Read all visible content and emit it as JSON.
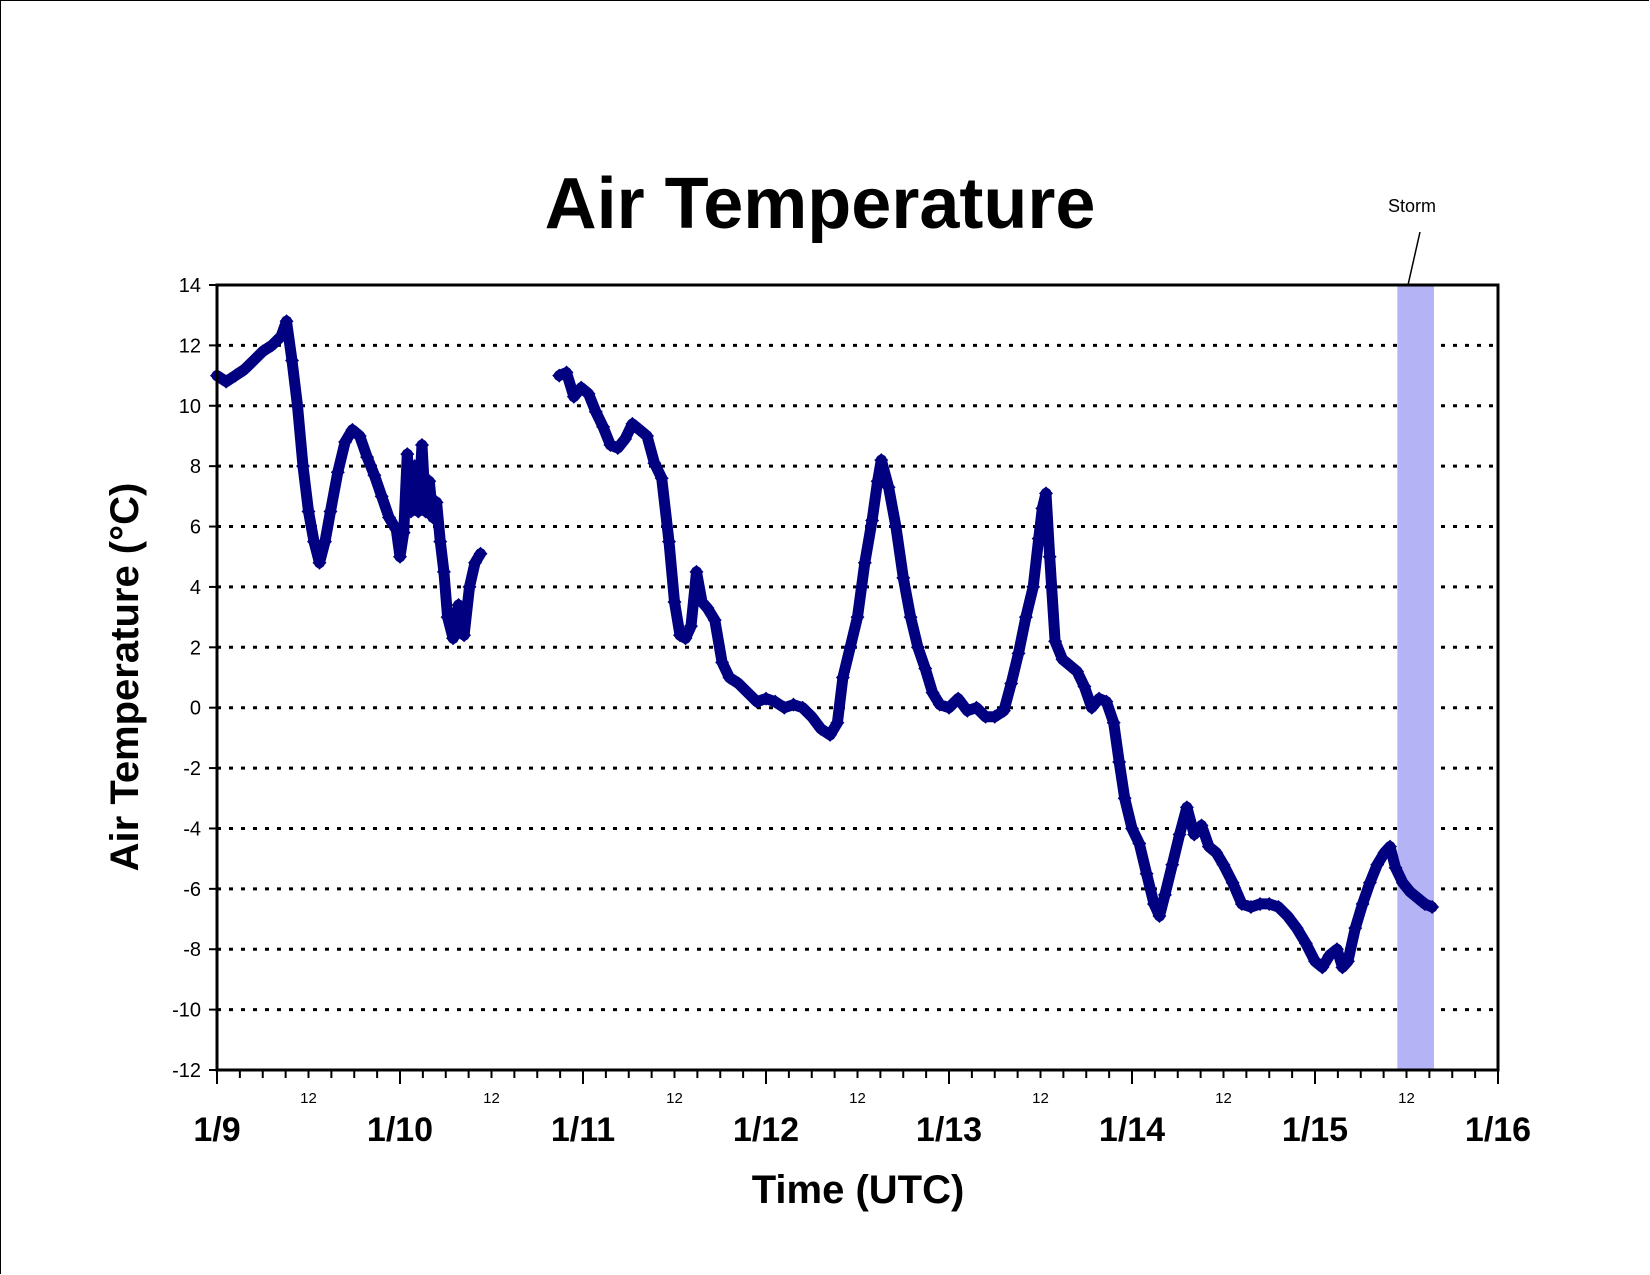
{
  "chart_data": {
    "type": "line",
    "title": "Air Temperature",
    "xlabel": "Time (UTC)",
    "ylabel": "Air Temperature (°C)",
    "ylim": [
      -12,
      14
    ],
    "yticks": [
      "14",
      "12",
      "10",
      "8",
      "6",
      "4",
      "2",
      "0",
      "-2",
      "-4",
      "-6",
      "-8",
      "-10",
      "-12"
    ],
    "x_unit": "days since 1/9 00:00 UTC",
    "x_range": [
      0,
      7
    ],
    "x_date_labels": [
      "1/9",
      "1/10",
      "1/11",
      "1/12",
      "1/13",
      "1/14",
      "1/15",
      "1/16"
    ],
    "x_hour_label": "12",
    "grid": "horizontal dotted",
    "annotation": {
      "label": "Storm",
      "x_start": 6.45,
      "x_end": 6.65
    },
    "colors": {
      "series": "#000080",
      "storm_band": "#b3b3f5"
    },
    "series": [
      {
        "segment": 1,
        "points": [
          [
            0.0,
            11.0
          ],
          [
            0.05,
            10.8
          ],
          [
            0.1,
            11.0
          ],
          [
            0.15,
            11.2
          ],
          [
            0.2,
            11.5
          ],
          [
            0.25,
            11.8
          ],
          [
            0.3,
            12.0
          ],
          [
            0.35,
            12.3
          ],
          [
            0.38,
            12.8
          ],
          [
            0.41,
            11.5
          ],
          [
            0.44,
            10.0
          ],
          [
            0.47,
            8.0
          ],
          [
            0.5,
            6.5
          ],
          [
            0.53,
            5.5
          ],
          [
            0.56,
            4.8
          ],
          [
            0.59,
            5.5
          ],
          [
            0.62,
            6.5
          ],
          [
            0.66,
            7.8
          ],
          [
            0.7,
            8.8
          ],
          [
            0.74,
            9.2
          ],
          [
            0.78,
            9.0
          ],
          [
            0.82,
            8.3
          ],
          [
            0.86,
            7.7
          ],
          [
            0.9,
            7.0
          ],
          [
            0.94,
            6.3
          ],
          [
            0.98,
            5.9
          ],
          [
            1.0,
            5.0
          ],
          [
            1.02,
            5.8
          ],
          [
            1.04,
            8.4
          ],
          [
            1.06,
            6.5
          ],
          [
            1.08,
            8.0
          ],
          [
            1.1,
            6.5
          ],
          [
            1.12,
            8.7
          ],
          [
            1.14,
            6.5
          ],
          [
            1.16,
            7.5
          ],
          [
            1.18,
            6.3
          ],
          [
            1.2,
            6.8
          ],
          [
            1.22,
            5.5
          ],
          [
            1.24,
            4.5
          ],
          [
            1.26,
            3.0
          ],
          [
            1.29,
            2.3
          ],
          [
            1.32,
            3.4
          ],
          [
            1.35,
            2.4
          ],
          [
            1.38,
            4.0
          ],
          [
            1.41,
            4.8
          ],
          [
            1.44,
            5.1
          ]
        ]
      },
      {
        "segment": 2,
        "points": [
          [
            1.87,
            11.0
          ],
          [
            1.91,
            11.1
          ],
          [
            1.95,
            10.3
          ],
          [
            1.99,
            10.6
          ],
          [
            2.03,
            10.4
          ],
          [
            2.07,
            9.8
          ],
          [
            2.11,
            9.3
          ],
          [
            2.15,
            8.7
          ],
          [
            2.19,
            8.6
          ],
          [
            2.23,
            8.9
          ],
          [
            2.27,
            9.4
          ],
          [
            2.31,
            9.2
          ],
          [
            2.35,
            9.0
          ],
          [
            2.39,
            8.1
          ],
          [
            2.43,
            7.6
          ],
          [
            2.47,
            5.5
          ],
          [
            2.5,
            3.5
          ],
          [
            2.53,
            2.4
          ],
          [
            2.56,
            2.3
          ],
          [
            2.59,
            2.7
          ],
          [
            2.62,
            4.5
          ],
          [
            2.65,
            3.5
          ],
          [
            2.68,
            3.3
          ],
          [
            2.72,
            2.9
          ],
          [
            2.76,
            1.5
          ],
          [
            2.8,
            1.0
          ],
          [
            2.85,
            0.8
          ],
          [
            2.9,
            0.5
          ],
          [
            2.95,
            0.2
          ],
          [
            3.0,
            0.3
          ],
          [
            3.05,
            0.2
          ],
          [
            3.1,
            0.0
          ],
          [
            3.15,
            0.1
          ],
          [
            3.2,
            0.0
          ],
          [
            3.25,
            -0.3
          ],
          [
            3.3,
            -0.7
          ],
          [
            3.35,
            -0.9
          ],
          [
            3.39,
            -0.5
          ],
          [
            3.42,
            1.0
          ],
          [
            3.46,
            2.0
          ],
          [
            3.5,
            3.0
          ],
          [
            3.54,
            4.8
          ],
          [
            3.58,
            6.2
          ],
          [
            3.61,
            7.5
          ],
          [
            3.63,
            8.2
          ],
          [
            3.67,
            7.3
          ],
          [
            3.71,
            6.0
          ],
          [
            3.75,
            4.3
          ],
          [
            3.79,
            3.0
          ],
          [
            3.83,
            2.0
          ],
          [
            3.87,
            1.3
          ],
          [
            3.91,
            0.5
          ],
          [
            3.95,
            0.1
          ],
          [
            4.0,
            0.0
          ],
          [
            4.05,
            0.3
          ],
          [
            4.1,
            -0.1
          ],
          [
            4.15,
            0.0
          ],
          [
            4.2,
            -0.3
          ],
          [
            4.25,
            -0.3
          ],
          [
            4.3,
            -0.1
          ],
          [
            4.34,
            0.8
          ],
          [
            4.38,
            1.8
          ],
          [
            4.42,
            3.0
          ],
          [
            4.46,
            4.0
          ],
          [
            4.49,
            5.6
          ],
          [
            4.51,
            6.6
          ],
          [
            4.53,
            7.1
          ],
          [
            4.55,
            5.0
          ],
          [
            4.58,
            2.2
          ],
          [
            4.62,
            1.6
          ],
          [
            4.66,
            1.4
          ],
          [
            4.7,
            1.2
          ],
          [
            4.74,
            0.7
          ],
          [
            4.78,
            0.0
          ],
          [
            4.82,
            0.3
          ],
          [
            4.86,
            0.2
          ],
          [
            4.9,
            -0.5
          ],
          [
            4.93,
            -1.8
          ],
          [
            4.96,
            -3.0
          ],
          [
            5.0,
            -4.0
          ],
          [
            5.04,
            -4.5
          ],
          [
            5.08,
            -5.5
          ],
          [
            5.12,
            -6.5
          ],
          [
            5.15,
            -6.9
          ],
          [
            5.18,
            -6.2
          ],
          [
            5.22,
            -5.2
          ],
          [
            5.26,
            -4.2
          ],
          [
            5.3,
            -3.3
          ],
          [
            5.34,
            -4.2
          ],
          [
            5.38,
            -3.9
          ],
          [
            5.42,
            -4.6
          ],
          [
            5.46,
            -4.8
          ],
          [
            5.5,
            -5.2
          ],
          [
            5.55,
            -5.8
          ],
          [
            5.6,
            -6.5
          ],
          [
            5.65,
            -6.6
          ],
          [
            5.7,
            -6.5
          ],
          [
            5.75,
            -6.5
          ],
          [
            5.8,
            -6.6
          ],
          [
            5.85,
            -6.9
          ],
          [
            5.9,
            -7.3
          ],
          [
            5.95,
            -7.8
          ],
          [
            6.0,
            -8.4
          ],
          [
            6.04,
            -8.6
          ],
          [
            6.08,
            -8.2
          ],
          [
            6.12,
            -8.0
          ],
          [
            6.15,
            -8.6
          ],
          [
            6.18,
            -8.4
          ],
          [
            6.22,
            -7.3
          ],
          [
            6.26,
            -6.5
          ],
          [
            6.3,
            -5.8
          ],
          [
            6.34,
            -5.2
          ],
          [
            6.38,
            -4.8
          ],
          [
            6.41,
            -4.6
          ],
          [
            6.44,
            -5.3
          ],
          [
            6.48,
            -5.8
          ],
          [
            6.52,
            -6.1
          ],
          [
            6.56,
            -6.3
          ],
          [
            6.6,
            -6.5
          ],
          [
            6.64,
            -6.6
          ]
        ]
      }
    ]
  }
}
